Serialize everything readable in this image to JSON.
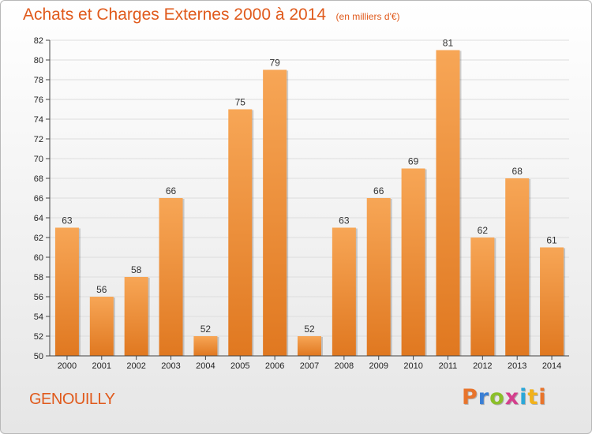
{
  "header": {
    "title": "Achats et Charges Externes 2000 à 2014",
    "subtitle": "(en milliers d'€)"
  },
  "footer": {
    "commune": "GENOUILLY",
    "brand": "Proxiti",
    "brand_letter_colors": [
      "#e8742c",
      "#3a7fd5",
      "#8bbf2a",
      "#d43f8d",
      "#2aa7d8",
      "#f2b21b",
      "#e8742c"
    ]
  },
  "colors": {
    "title": "#e05a1c",
    "bar_light": "#f7a656",
    "bar_dark": "#e07820",
    "grid": "#dddddd",
    "axis": "#444444"
  },
  "chart_data": {
    "type": "bar",
    "title": "Achats et Charges Externes 2000 à 2014",
    "subtitle": "(en milliers d'€)",
    "categories": [
      "2000",
      "2001",
      "2002",
      "2003",
      "2004",
      "2005",
      "2006",
      "2007",
      "2008",
      "2009",
      "2010",
      "2011",
      "2012",
      "2013",
      "2014"
    ],
    "values": [
      63,
      56,
      58,
      66,
      52,
      75,
      79,
      52,
      63,
      66,
      69,
      81,
      62,
      68,
      61
    ],
    "ylim": [
      50,
      82
    ],
    "yticks": [
      50,
      52,
      54,
      56,
      58,
      60,
      62,
      64,
      66,
      68,
      70,
      72,
      74,
      76,
      78,
      80,
      82
    ],
    "grid": true,
    "xlabel": "",
    "ylabel": ""
  }
}
